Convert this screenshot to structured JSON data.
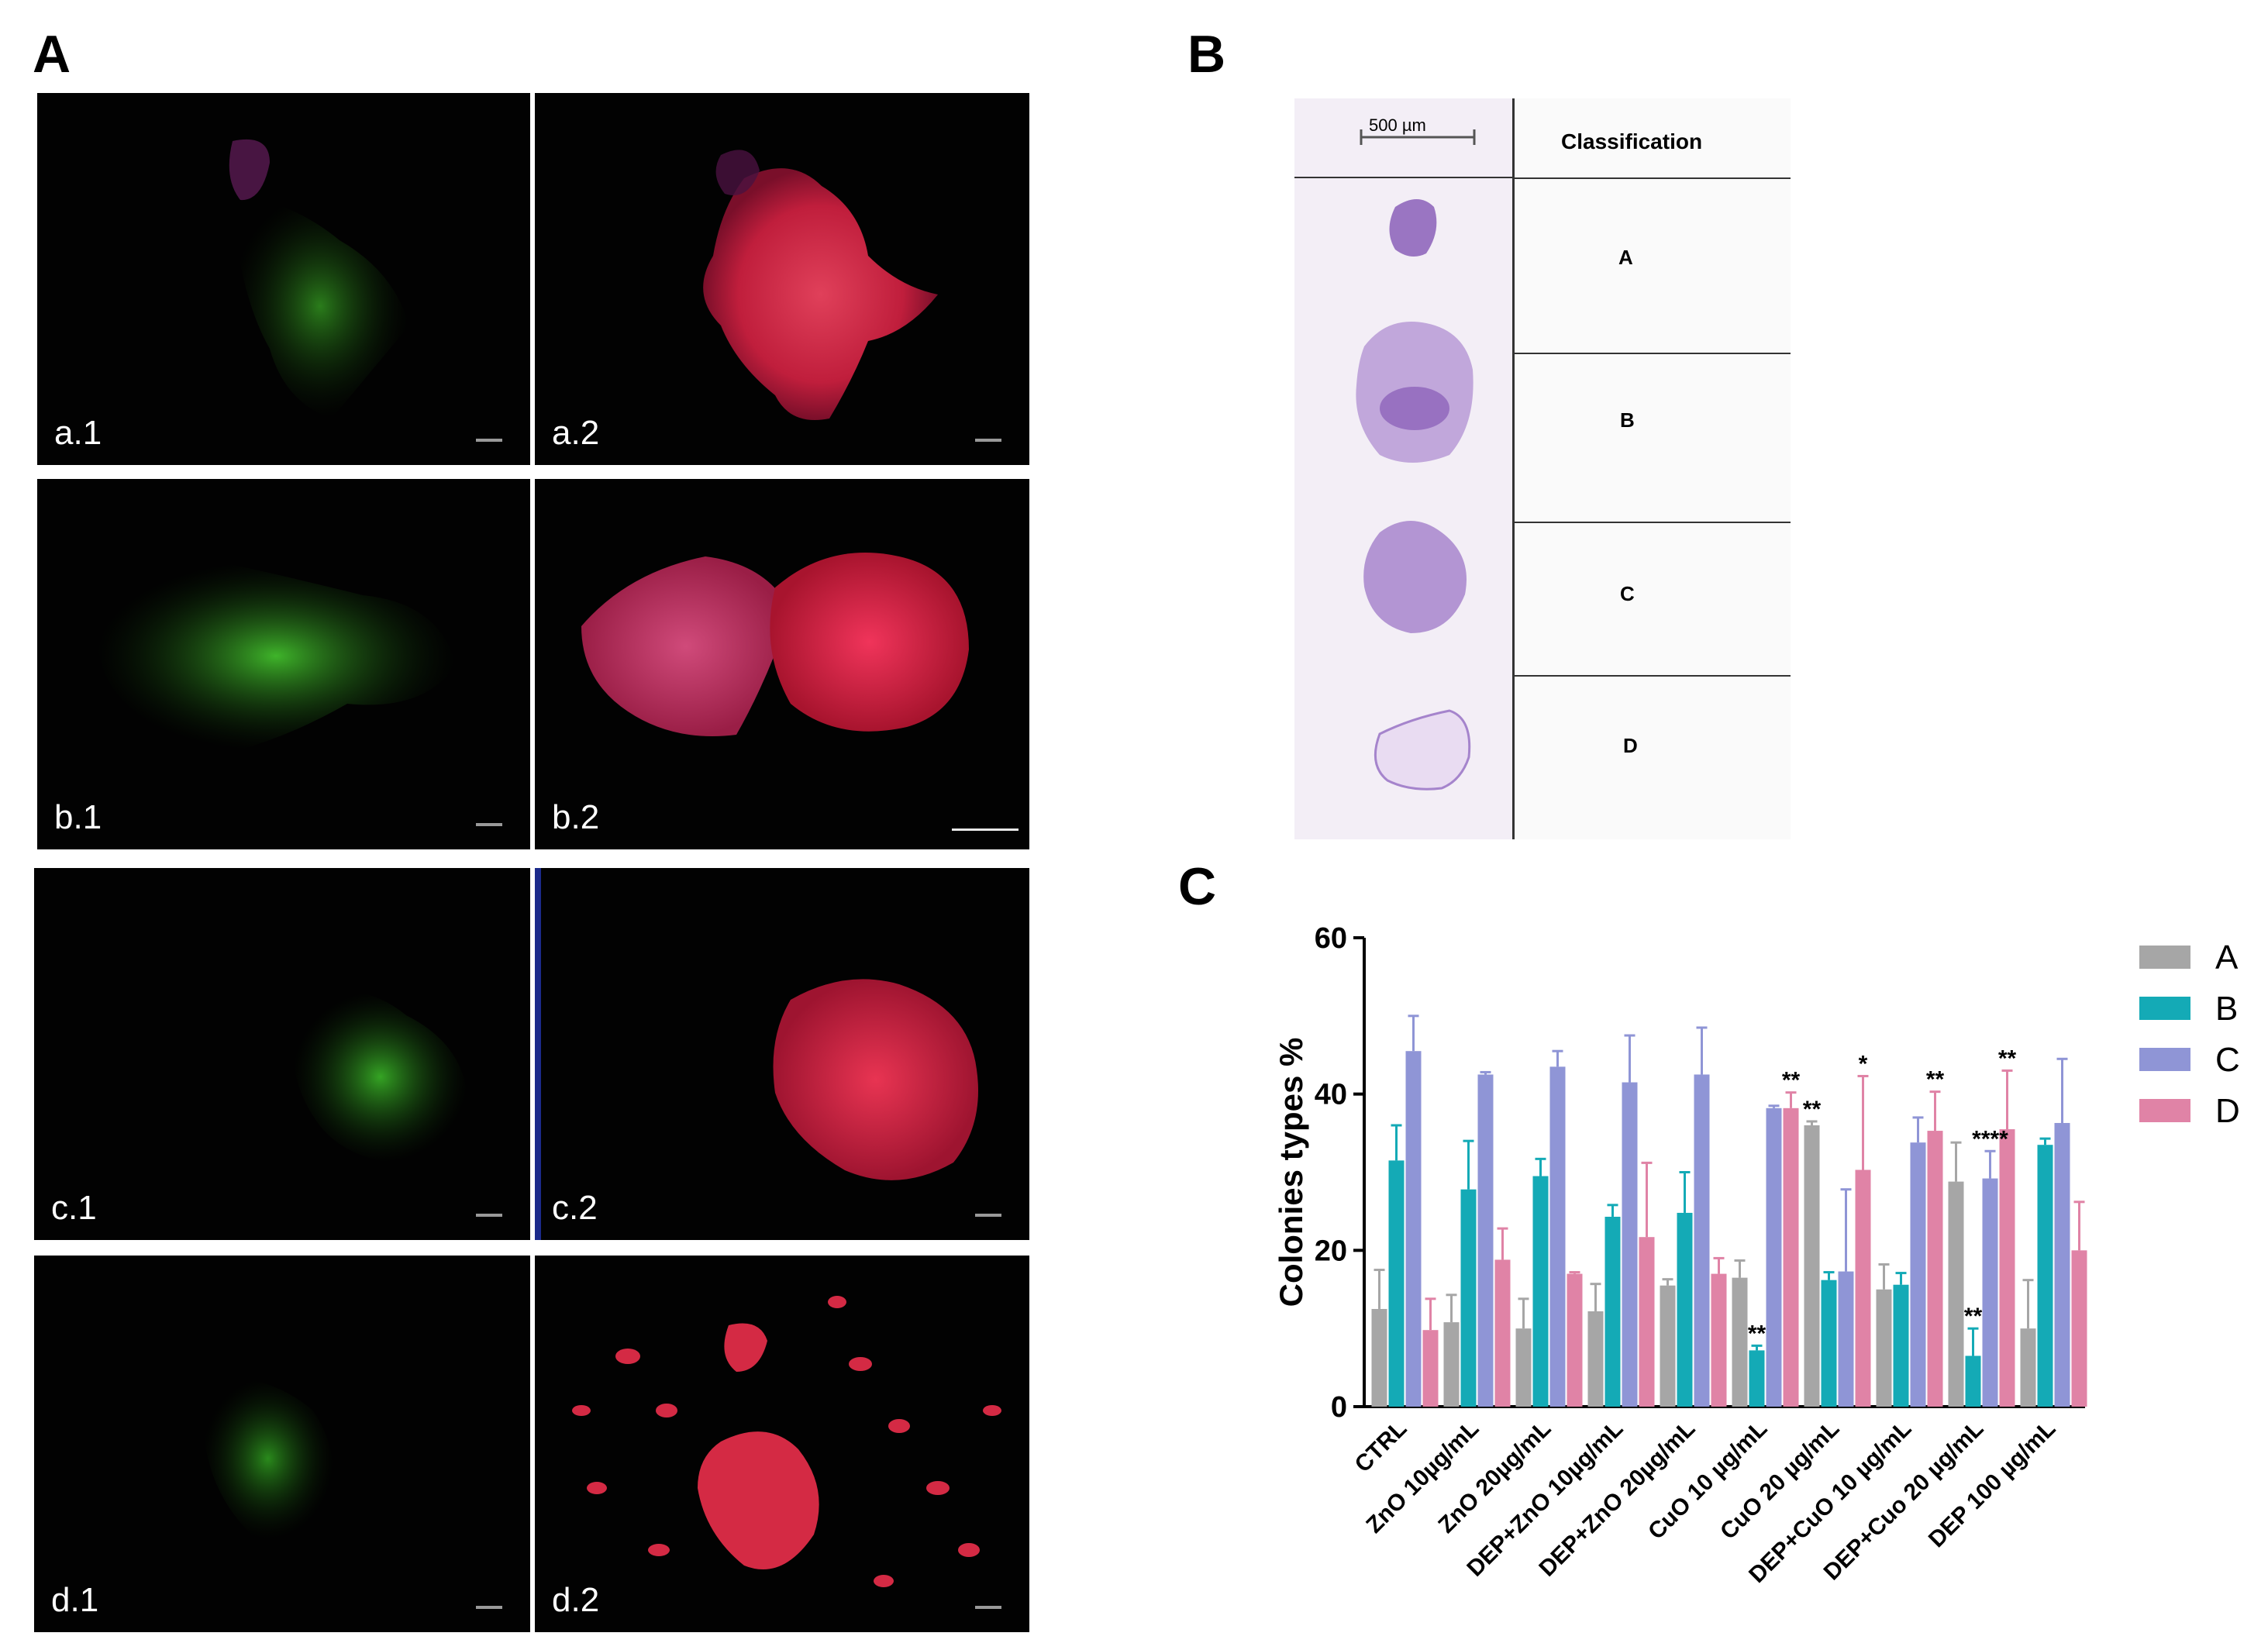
{
  "panels": {
    "a_label": "A",
    "b_label": "B",
    "c_label": "C"
  },
  "micrographs": [
    {
      "label": "a.1"
    },
    {
      "label": "a.2"
    },
    {
      "label": "b.1"
    },
    {
      "label": "b.2"
    },
    {
      "label": "c.1"
    },
    {
      "label": "c.2"
    },
    {
      "label": "d.1"
    },
    {
      "label": "d.2"
    }
  ],
  "classification_table": {
    "scale_label": "500 µm",
    "header": "Classification",
    "rows": [
      "A",
      "B",
      "C",
      "D"
    ]
  },
  "colors": {
    "A": "#a6a6a6",
    "B": "#14aab6",
    "C": "#8f95d6",
    "D": "#e083a6"
  },
  "chart_data": {
    "type": "bar",
    "ylabel": "Colonies types %",
    "ylim": [
      0,
      60
    ],
    "yticks": [
      "0",
      "20",
      "40",
      "60"
    ],
    "categories": [
      "CTRL",
      "ZnO 10µg/mL",
      "ZnO 20µg/mL",
      "DEP+ZnO 10µg/mL",
      "DEP+ZnO  20µg/mL",
      "CuO 10 µg/mL",
      "CuO 20 µg/mL",
      "DEP+CuO 10 µg/mL",
      "DEP+Cuo 20 µg/mL",
      "DEP 100 µg/mL"
    ],
    "legend": [
      "A",
      "B",
      "C",
      "D"
    ],
    "legend_position": "right",
    "series": [
      {
        "name": "A",
        "values": [
          12.5,
          10.8,
          10,
          12.2,
          15.5,
          16.5,
          36,
          15,
          28.8,
          10
        ],
        "errors": [
          5,
          3.5,
          3.8,
          3.5,
          0.8,
          2.2,
          0.5,
          3.2,
          5,
          6.2
        ]
      },
      {
        "name": "B",
        "values": [
          31.5,
          27.8,
          29.5,
          24.3,
          24.8,
          7.2,
          16.2,
          15.6,
          6.5,
          33.5
        ],
        "errors": [
          4.5,
          6.2,
          2.2,
          1.5,
          5.2,
          0.6,
          1,
          1.5,
          3.5,
          0.8
        ]
      },
      {
        "name": "C",
        "values": [
          45.5,
          42.5,
          43.5,
          41.5,
          42.5,
          38.2,
          17.3,
          33.8,
          29.2,
          36.3
        ],
        "errors": [
          4.5,
          0.3,
          2,
          6,
          6,
          0.3,
          10.5,
          3.2,
          3.5,
          8.2
        ]
      },
      {
        "name": "D",
        "values": [
          9.8,
          18.8,
          17,
          21.7,
          17,
          38.2,
          30.3,
          35.3,
          35.5,
          20
        ],
        "errors": [
          4,
          4,
          0.2,
          9.5,
          2,
          2,
          12,
          5,
          7.5,
          6.2
        ]
      }
    ],
    "annotations": [
      {
        "category": 5,
        "series": "B",
        "text": "**"
      },
      {
        "category": 5,
        "series": "D",
        "text": "**"
      },
      {
        "category": 6,
        "series": "A",
        "text": "**"
      },
      {
        "category": 6,
        "series": "D",
        "text": "*"
      },
      {
        "category": 7,
        "series": "D",
        "text": "**"
      },
      {
        "category": 8,
        "series": "B",
        "text": "**"
      },
      {
        "category": 8,
        "series": "C",
        "text": "****"
      },
      {
        "category": 8,
        "series": "D",
        "text": "**"
      }
    ]
  }
}
